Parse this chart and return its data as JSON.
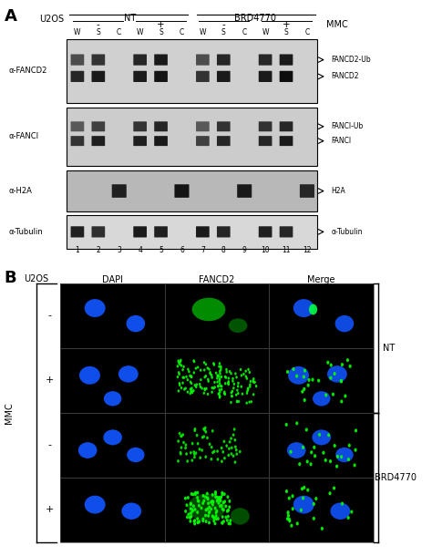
{
  "panel_A": {
    "label": "A",
    "title_cell_line": "U2OS",
    "group1_label": "NT",
    "group2_label": "BRD4770",
    "mmc_label": "MMC",
    "lane_labels": [
      "W",
      "S",
      "C",
      "W",
      "S",
      "C",
      "W",
      "S",
      "C",
      "W",
      "S",
      "C"
    ],
    "lane_numbers": [
      "1",
      "2",
      "3",
      "4",
      "5",
      "6",
      "7",
      "8",
      "9",
      "10",
      "11",
      "12"
    ],
    "row_labels": [
      "α-FANCD2",
      "α-FANCI",
      "α-H2A",
      "α-Tubulin"
    ],
    "right_labels": [
      [
        "FANCD2-Ub",
        "FANCD2"
      ],
      [
        "FANCI-Ub",
        "FANCI"
      ],
      [
        "H2A"
      ],
      [
        "α-Tubulin"
      ]
    ],
    "blot_colors": [
      "#d0d0d0",
      "#cccccc",
      "#b8b8b8",
      "#d8d8d8"
    ]
  },
  "panel_B": {
    "label": "B",
    "title_cell_line": "U2OS",
    "col_labels": [
      "DAPI",
      "FANCD2",
      "Merge"
    ],
    "row_signs": [
      "-",
      "+",
      "-",
      "+"
    ],
    "left_label": "MMC",
    "right_label1": "NT",
    "right_label2": "BRD4770"
  }
}
